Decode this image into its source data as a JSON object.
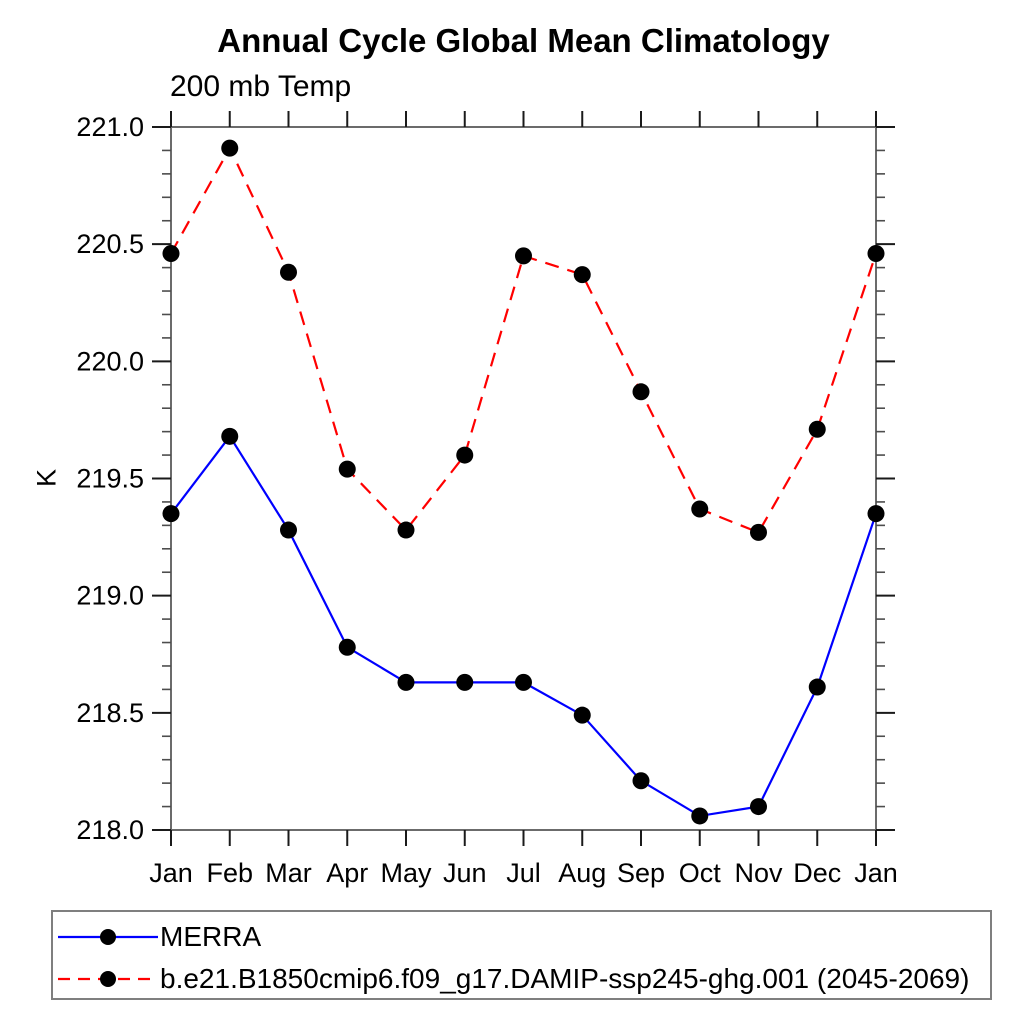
{
  "figure": {
    "title": "Annual Cycle Global Mean Climatology",
    "subtitle": "200 mb Temp"
  },
  "chart_data": {
    "type": "line",
    "title": "Annual Cycle Global Mean Climatology",
    "subtitle": "200 mb Temp",
    "xlabel": "",
    "ylabel": "K",
    "categories": [
      "Jan",
      "Feb",
      "Mar",
      "Apr",
      "May",
      "Jun",
      "Jul",
      "Aug",
      "Sep",
      "Oct",
      "Nov",
      "Dec",
      "Jan"
    ],
    "ylim": [
      218.0,
      221.0
    ],
    "ytick_major_interval": 0.5,
    "ytick_minor_interval": 0.1,
    "ytick_labels": [
      "218.0",
      "218.5",
      "219.0",
      "219.5",
      "220.0",
      "220.5",
      "221.0"
    ],
    "grid": false,
    "legend_position": "bottom-box",
    "frame_color": "#6b6b6b",
    "tick_color": "#1a1a1a",
    "marker_color": "#000000",
    "series": [
      {
        "name": "MERRA",
        "slug": "merra",
        "color": "#0000ff",
        "line_style": "solid",
        "marker": "filled-circle",
        "values": [
          219.35,
          219.68,
          219.28,
          218.78,
          218.63,
          218.63,
          218.63,
          218.49,
          218.21,
          218.06,
          218.1,
          218.61,
          219.35
        ]
      },
      {
        "name": "b.e21.B1850cmip6.f09_g17.DAMIP-ssp245-ghg.001 (2045-2069)",
        "slug": "model-damip-ssp245-ghg",
        "color": "#ff0000",
        "line_style": "dashed",
        "marker": "filled-circle",
        "values": [
          220.46,
          220.91,
          220.38,
          219.54,
          219.28,
          219.6,
          220.45,
          220.37,
          219.87,
          219.37,
          219.27,
          219.71,
          220.46
        ]
      }
    ]
  }
}
